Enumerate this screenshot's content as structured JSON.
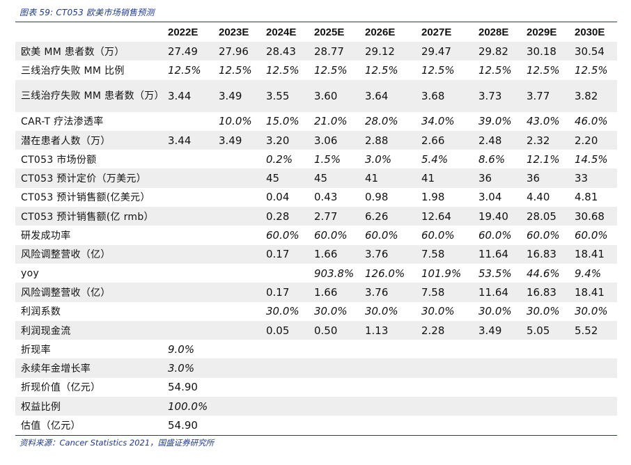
{
  "caption": "图表 59: CT053 欧美市场销售预测",
  "columns": [
    "",
    "2022E",
    "2023E",
    "2024E",
    "2025E",
    "2026E",
    "2027E",
    "2028E",
    "2029E",
    "2030E"
  ],
  "rows": [
    {
      "label": "欧美 MM 患者数（万）",
      "italic": false,
      "cells": [
        "27.49",
        "27.96",
        "28.43",
        "28.77",
        "29.12",
        "29.47",
        "29.82",
        "30.18",
        "30.54"
      ]
    },
    {
      "label": "三线治疗失败 MM 比例",
      "italic": true,
      "cells": [
        "12.5%",
        "12.5%",
        "12.5%",
        "12.5%",
        "12.5%",
        "12.5%",
        "12.5%",
        "12.5%",
        "12.5%"
      ]
    },
    {
      "label": "三线治疗失败 MM 患者数（万）",
      "italic": false,
      "tall": true,
      "cells": [
        "3.44",
        "3.49",
        "3.55",
        "3.60",
        "3.64",
        "3.68",
        "3.73",
        "3.77",
        "3.82"
      ]
    },
    {
      "label": "CAR-T 疗法渗透率",
      "italic": true,
      "cells": [
        "",
        "10.0%",
        "15.0%",
        "21.0%",
        "28.0%",
        "34.0%",
        "39.0%",
        "43.0%",
        "46.0%"
      ]
    },
    {
      "label": "潜在患者人数（万）",
      "italic": false,
      "cells": [
        "3.44",
        "3.49",
        "3.20",
        "3.06",
        "2.88",
        "2.66",
        "2.48",
        "2.32",
        "2.20"
      ]
    },
    {
      "label": "CT053 市场份额",
      "italic": true,
      "cells": [
        "",
        "",
        "0.2%",
        "1.5%",
        "3.0%",
        "5.4%",
        "8.6%",
        "12.1%",
        "14.5%"
      ]
    },
    {
      "label": "CT053 预计定价（万美元）",
      "italic": false,
      "cells": [
        "",
        "",
        "45",
        "45",
        "41",
        "41",
        "36",
        "36",
        "33"
      ]
    },
    {
      "label": "CT053 预计销售额(亿美元）",
      "italic": false,
      "cells": [
        "",
        "",
        "0.04",
        "0.43",
        "0.98",
        "1.98",
        "3.04",
        "4.40",
        "4.81"
      ]
    },
    {
      "label": "CT053 预计销售额(亿 rmb）",
      "italic": false,
      "cells": [
        "",
        "",
        "0.28",
        "2.77",
        "6.26",
        "12.64",
        "19.40",
        "28.05",
        "30.68"
      ]
    },
    {
      "label": "研发成功率",
      "italic": true,
      "cells": [
        "",
        "",
        "60.0%",
        "60.0%",
        "60.0%",
        "60.0%",
        "60.0%",
        "60.0%",
        "60.0%"
      ]
    },
    {
      "label": "风险调整营收（亿）",
      "italic": false,
      "cells": [
        "",
        "",
        "0.17",
        "1.66",
        "3.76",
        "7.58",
        "11.64",
        "16.83",
        "18.41"
      ]
    },
    {
      "label": "yoy",
      "italic": true,
      "cells": [
        "",
        "",
        "",
        "903.8%",
        "126.0%",
        "101.9%",
        "53.5%",
        "44.6%",
        "9.4%"
      ]
    },
    {
      "label": "风险调整营收（亿）",
      "italic": false,
      "cells": [
        "",
        "",
        "0.17",
        "1.66",
        "3.76",
        "7.58",
        "11.64",
        "16.83",
        "18.41"
      ]
    },
    {
      "label": "利润系数",
      "italic": true,
      "cells": [
        "",
        "",
        "30.0%",
        "30.0%",
        "30.0%",
        "30.0%",
        "30.0%",
        "30.0%",
        "30.0%"
      ]
    },
    {
      "label": "利润现金流",
      "italic": false,
      "cells": [
        "",
        "",
        "0.05",
        "0.50",
        "1.13",
        "2.28",
        "3.49",
        "5.05",
        "5.52"
      ]
    },
    {
      "label": "折现率",
      "italic": true,
      "cells": [
        "9.0%",
        "",
        "",
        "",
        "",
        "",
        "",
        "",
        ""
      ]
    },
    {
      "label": "永续年金增长率",
      "italic": true,
      "cells": [
        "3.0%",
        "",
        "",
        "",
        "",
        "",
        "",
        "",
        ""
      ]
    },
    {
      "label": "折现价值（亿元）",
      "italic": false,
      "cells": [
        "54.90",
        "",
        "",
        "",
        "",
        "",
        "",
        "",
        ""
      ]
    },
    {
      "label": "权益比例",
      "italic": true,
      "cells": [
        "100.0%",
        "",
        "",
        "",
        "",
        "",
        "",
        "",
        ""
      ]
    },
    {
      "label": "估值（亿元）",
      "italic": false,
      "cells": [
        "54.90",
        "",
        "",
        "",
        "",
        "",
        "",
        "",
        ""
      ]
    }
  ],
  "source": "资料来源：Cancer Statistics 2021，国盛证券研究所"
}
